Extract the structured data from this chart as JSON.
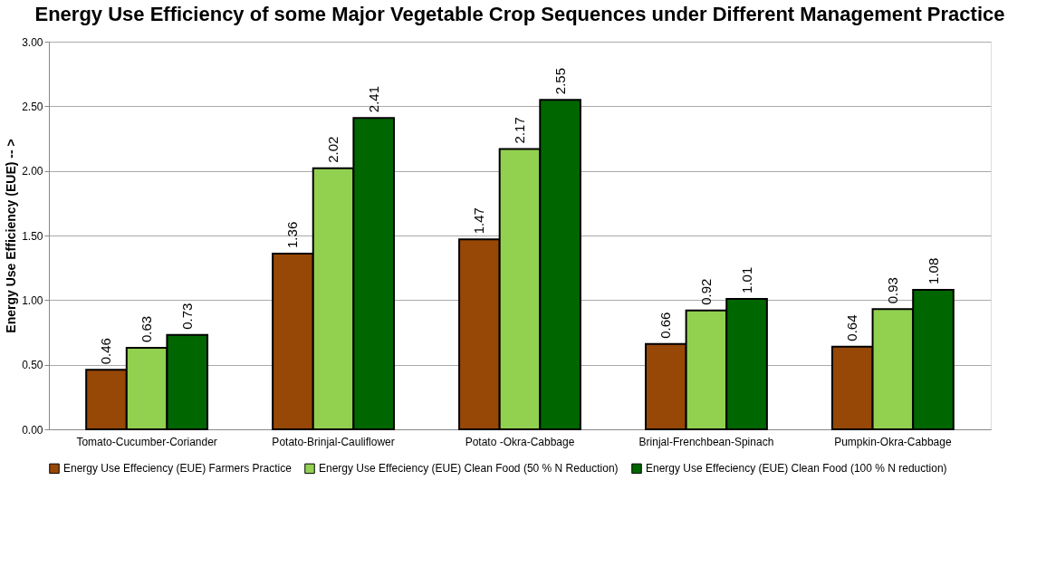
{
  "chart_data": {
    "type": "bar",
    "title": "Energy Use Efficiency of some Major Vegetable Crop Sequences under Different Management Practice",
    "ylabel": "Energy Use Efficiency (EUE) -- >",
    "categories": [
      "Tomato-Cucumber-Coriander",
      "Potato-Brinjal-Cauliflower",
      "Potato -Okra-Cabbage",
      "Brinjal-Frenchbean-Spinach",
      "Pumpkin-Okra-Cabbage"
    ],
    "series": [
      {
        "name": "Energy Use Effeciency (EUE) Farmers Practice",
        "color": "#974706",
        "values": [
          0.46,
          1.36,
          1.47,
          0.66,
          0.64
        ]
      },
      {
        "name": "Energy Use Effeciency (EUE) Clean Food (50 % N Reduction)",
        "color": "#92d050",
        "values": [
          0.63,
          2.02,
          2.17,
          0.92,
          0.93
        ]
      },
      {
        "name": "Energy Use Effeciency (EUE) Clean Food (100 % N reduction)",
        "color": "#006600",
        "values": [
          0.73,
          2.41,
          2.55,
          1.01,
          1.08
        ]
      }
    ],
    "ylim": [
      0,
      3
    ],
    "yticks": [
      {
        "value": 0,
        "label": "0.00"
      },
      {
        "value": 0.5,
        "label": "0.50"
      },
      {
        "value": 1,
        "label": "1.00"
      },
      {
        "value": 1.5,
        "label": "1.50"
      },
      {
        "value": 2,
        "label": "2.00"
      },
      {
        "value": 2.5,
        "label": "2.50"
      },
      {
        "value": 3,
        "label": "3.00"
      }
    ],
    "grid": "y",
    "legend": "bottom",
    "data_labels": true
  }
}
